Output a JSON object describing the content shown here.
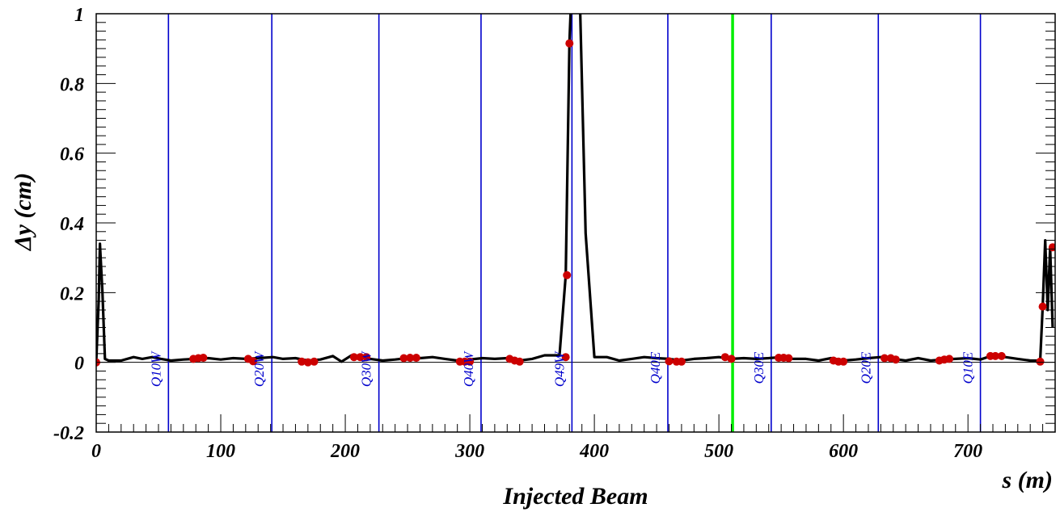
{
  "chart_data": {
    "type": "line",
    "title": "Injected Beam",
    "xlabel": "s (m)",
    "ylabel": "Δy (cm)",
    "xlim": [
      0,
      770
    ],
    "ylim": [
      -0.2,
      1.0
    ],
    "xticks": [
      0,
      100,
      200,
      300,
      400,
      500,
      600,
      700
    ],
    "yticks": [
      -0.2,
      0,
      0.2,
      0.4,
      0.6,
      0.8,
      1
    ],
    "xtick_labels": [
      "0",
      "100",
      "200",
      "300",
      "400",
      "500",
      "600",
      "700"
    ],
    "ytick_labels": [
      "-0.2",
      "0",
      "0.2",
      "0.4",
      "0.6",
      "0.8",
      "1"
    ],
    "grid": false,
    "zero_line": true,
    "series": [
      {
        "kind": "line",
        "color": "#000000",
        "points": [
          [
            0,
            0
          ],
          [
            2,
            0.18
          ],
          [
            3,
            0.34
          ],
          [
            5,
            0.2
          ],
          [
            7,
            0.01
          ],
          [
            10,
            0.005
          ],
          [
            20,
            0.005
          ],
          [
            30,
            0.015
          ],
          [
            37,
            0.01
          ],
          [
            45,
            0.015
          ],
          [
            52,
            0.01
          ],
          [
            60,
            0.005
          ],
          [
            70,
            0.008
          ],
          [
            80,
            0.01
          ],
          [
            90,
            0.012
          ],
          [
            100,
            0.008
          ],
          [
            110,
            0.012
          ],
          [
            120,
            0.01
          ],
          [
            130,
            0.012
          ],
          [
            142,
            0.015
          ],
          [
            150,
            0.01
          ],
          [
            160,
            0.012
          ],
          [
            170,
            0.005
          ],
          [
            180,
            0.008
          ],
          [
            190,
            0.018
          ],
          [
            197,
            0.002
          ],
          [
            205,
            0.02
          ],
          [
            212,
            0.015
          ],
          [
            220,
            0.01
          ],
          [
            230,
            0.005
          ],
          [
            240,
            0.008
          ],
          [
            250,
            0.012
          ],
          [
            260,
            0.012
          ],
          [
            270,
            0.015
          ],
          [
            280,
            0.01
          ],
          [
            290,
            0.005
          ],
          [
            300,
            0.008
          ],
          [
            310,
            0.012
          ],
          [
            320,
            0.01
          ],
          [
            330,
            0.012
          ],
          [
            340,
            0.005
          ],
          [
            350,
            0.01
          ],
          [
            360,
            0.02
          ],
          [
            372,
            0.02
          ],
          [
            377,
            0.25
          ],
          [
            380,
            0.92
          ],
          [
            382,
            1.1
          ],
          [
            388,
            1.1
          ],
          [
            393,
            0.37
          ],
          [
            400,
            0.015
          ],
          [
            410,
            0.015
          ],
          [
            420,
            0.005
          ],
          [
            430,
            0.01
          ],
          [
            440,
            0.015
          ],
          [
            450,
            0.012
          ],
          [
            460,
            0.01
          ],
          [
            470,
            0.005
          ],
          [
            480,
            0.01
          ],
          [
            490,
            0.012
          ],
          [
            500,
            0.015
          ],
          [
            510,
            0.01
          ],
          [
            520,
            0.012
          ],
          [
            530,
            0.01
          ],
          [
            540,
            0.012
          ],
          [
            550,
            0.015
          ],
          [
            560,
            0.01
          ],
          [
            570,
            0.01
          ],
          [
            580,
            0.005
          ],
          [
            590,
            0.012
          ],
          [
            600,
            0.005
          ],
          [
            610,
            0.008
          ],
          [
            620,
            0.012
          ],
          [
            630,
            0.015
          ],
          [
            640,
            0.01
          ],
          [
            650,
            0.005
          ],
          [
            660,
            0.012
          ],
          [
            670,
            0.005
          ],
          [
            680,
            0.008
          ],
          [
            690,
            0.01
          ],
          [
            700,
            0.012
          ],
          [
            710,
            0.008
          ],
          [
            720,
            0.02
          ],
          [
            730,
            0.015
          ],
          [
            740,
            0.01
          ],
          [
            750,
            0.005
          ],
          [
            758,
            0.005
          ],
          [
            760,
            0.16
          ],
          [
            762,
            0.35
          ],
          [
            764,
            0.15
          ],
          [
            766,
            0.33
          ],
          [
            768,
            0.1
          ]
        ]
      },
      {
        "kind": "markers",
        "color": "#cc0000",
        "points": [
          [
            0,
            0
          ],
          [
            78,
            0.01
          ],
          [
            82,
            0.012
          ],
          [
            86,
            0.013
          ],
          [
            122,
            0.01
          ],
          [
            126,
            0.003
          ],
          [
            165,
            0.002
          ],
          [
            170,
            0.0
          ],
          [
            175,
            0.002
          ],
          [
            207,
            0.015
          ],
          [
            212,
            0.015
          ],
          [
            217,
            0.015
          ],
          [
            247,
            0.012
          ],
          [
            252,
            0.013
          ],
          [
            257,
            0.013
          ],
          [
            292,
            0.002
          ],
          [
            296,
            0.002
          ],
          [
            300,
            0.002
          ],
          [
            332,
            0.01
          ],
          [
            336,
            0.005
          ],
          [
            340,
            0.002
          ],
          [
            377,
            0.015
          ],
          [
            378,
            0.25
          ],
          [
            380,
            0.915
          ],
          [
            460,
            0.003
          ],
          [
            466,
            0.002
          ],
          [
            470,
            0.002
          ],
          [
            505,
            0.015
          ],
          [
            510,
            0.01
          ],
          [
            548,
            0.013
          ],
          [
            552,
            0.013
          ],
          [
            556,
            0.012
          ],
          [
            592,
            0.005
          ],
          [
            596,
            0.002
          ],
          [
            600,
            0.002
          ],
          [
            633,
            0.012
          ],
          [
            638,
            0.012
          ],
          [
            642,
            0.008
          ],
          [
            677,
            0.005
          ],
          [
            681,
            0.008
          ],
          [
            685,
            0.01
          ],
          [
            718,
            0.018
          ],
          [
            722,
            0.018
          ],
          [
            727,
            0.018
          ],
          [
            758,
            0.002
          ],
          [
            760,
            0.16
          ],
          [
            768,
            0.33
          ]
        ]
      }
    ],
    "quadrupoles": [
      {
        "label": "Q10W",
        "x": 58,
        "color": "#0000cc"
      },
      {
        "label": "Q20W",
        "x": 141,
        "color": "#0000cc"
      },
      {
        "label": "Q30W",
        "x": 227,
        "color": "#0000cc"
      },
      {
        "label": "Q40W",
        "x": 309,
        "color": "#0000cc"
      },
      {
        "label": "Q49W",
        "x": 382,
        "color": "#0000cc"
      },
      {
        "label": "Q40E",
        "x": 459,
        "color": "#0000cc"
      },
      {
        "label": "Q30E",
        "x": 542,
        "color": "#0000cc"
      },
      {
        "label": "Q20E",
        "x": 628,
        "color": "#0000cc"
      },
      {
        "label": "Q10E",
        "x": 710,
        "color": "#0000cc"
      }
    ],
    "marker_line": {
      "x": 511,
      "color": "#00ee00"
    }
  }
}
